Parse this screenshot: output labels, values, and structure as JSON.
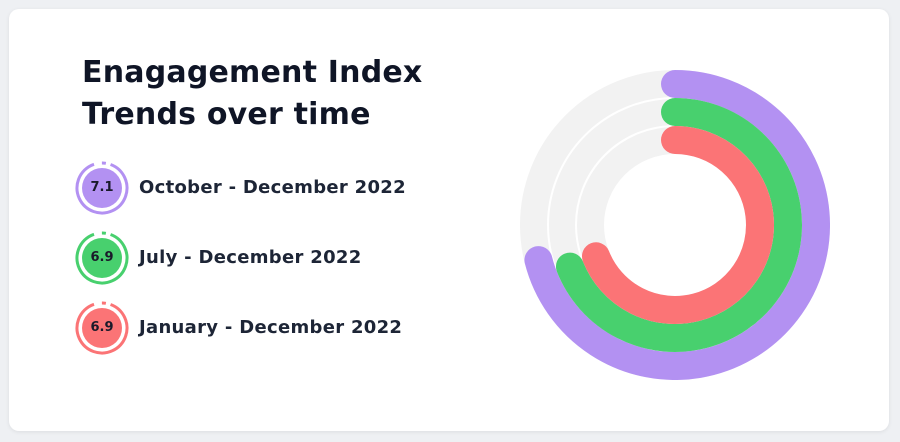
{
  "title_lines": [
    "Enagagement Index",
    "Trends over time"
  ],
  "chart_data": {
    "type": "radial-bar",
    "series": [
      {
        "name": "October - December  2022",
        "value": 7.1,
        "color": "#b391f2"
      },
      {
        "name": "July - December  2022",
        "value": 6.9,
        "color": "#48d06e"
      },
      {
        "name": "January - December  2022",
        "value": 6.9,
        "color": "#fb7476"
      }
    ],
    "track_color": "#f2f2f2"
  }
}
